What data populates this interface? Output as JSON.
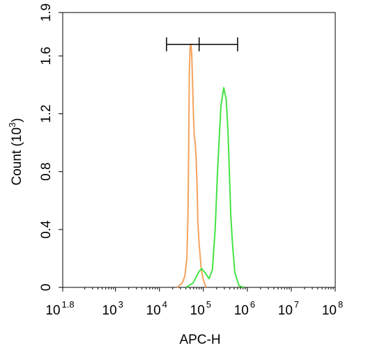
{
  "chart_data": {
    "type": "line",
    "title": "",
    "xlabel": "APC-H",
    "ylabel": "Count (10",
    "ylabel_sup": "3",
    "ylabel_close": ")",
    "x_scale": "log10",
    "xlim": [
      63,
      100000000
    ],
    "ylim": [
      0,
      1.9
    ],
    "x_ticks": [
      {
        "value": 63,
        "base": "10",
        "exp": "1.8"
      },
      {
        "value": 1000,
        "base": "10",
        "exp": "3"
      },
      {
        "value": 10000,
        "base": "10",
        "exp": "4"
      },
      {
        "value": 100000,
        "base": "10",
        "exp": "5"
      },
      {
        "value": 1000000,
        "base": "10",
        "exp": "6"
      },
      {
        "value": 10000000,
        "base": "10",
        "exp": "7"
      },
      {
        "value": 100000000,
        "base": "10",
        "exp": "8"
      }
    ],
    "y_ticks": [
      {
        "value": 0,
        "label": "0"
      },
      {
        "value": 0.4,
        "label": "0.4"
      },
      {
        "value": 0.8,
        "label": "0.8"
      },
      {
        "value": 1.2,
        "label": "1.2"
      },
      {
        "value": 1.6,
        "label": "1.6"
      },
      {
        "value": 1.9,
        "label": "1.9"
      }
    ],
    "grid": false,
    "series": [
      {
        "color": "#f5a35c",
        "x": [
          25000,
          33000,
          38000,
          42000,
          44500,
          46000,
          47000,
          48000,
          50000,
          52000,
          54000,
          57000,
          60000,
          62000,
          65000,
          68000,
          72000,
          75000,
          80000,
          90000,
          100000,
          115000
        ],
        "y": [
          0.0,
          0.03,
          0.08,
          0.2,
          0.5,
          0.9,
          1.2,
          1.5,
          1.66,
          1.68,
          1.62,
          1.4,
          1.15,
          1.05,
          1.0,
          0.9,
          0.7,
          0.45,
          0.3,
          0.12,
          0.05,
          0.0
        ]
      },
      {
        "color": "#44e244",
        "x": [
          40000,
          58000,
          68000,
          80000,
          92000,
          110000,
          135000,
          160000,
          185000,
          210000,
          250000,
          290000,
          330000,
          360000,
          390000,
          420000,
          460000,
          520000,
          650000,
          850000
        ],
        "y": [
          0.0,
          0.03,
          0.07,
          0.11,
          0.13,
          0.1,
          0.06,
          0.12,
          0.4,
          0.8,
          1.25,
          1.38,
          1.3,
          1.1,
          0.8,
          0.5,
          0.3,
          0.1,
          0.01,
          0.0
        ]
      }
    ],
    "gate": {
      "left": 14500,
      "mid": 80000,
      "right": 600000,
      "y": 1.68
    }
  }
}
